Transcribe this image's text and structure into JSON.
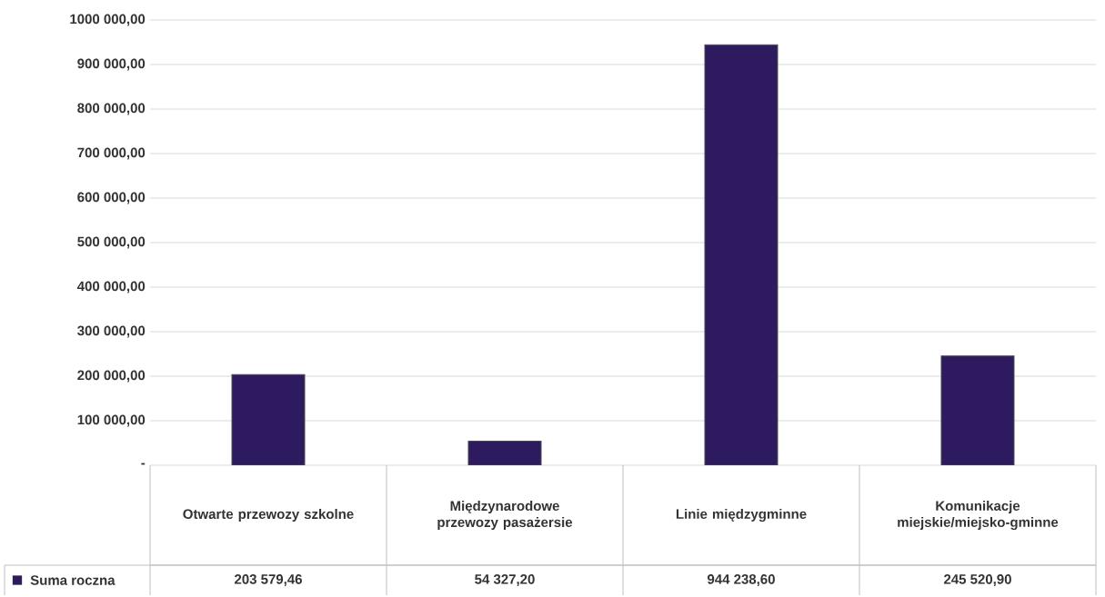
{
  "chart_data": {
    "type": "bar",
    "categories": [
      "Otwarte przewozy szkolne",
      "Międzynarodowe przewozy pasażersie",
      "Linie międzygminne",
      "Komunikacje miejskie/miejsko-gminne"
    ],
    "series": [
      {
        "name": "Suma roczna",
        "color": "#2e1a5e",
        "values": [
          203579.46,
          54327.2,
          944238.6,
          245520.9
        ],
        "value_labels": [
          "203 579,46",
          "54 327,20",
          "944 238,60",
          "245 520,90"
        ]
      }
    ],
    "ylim": [
      0,
      1000000
    ],
    "yticks": [
      {
        "value": 0,
        "label": "-"
      },
      {
        "value": 100000,
        "label": "100 000,00"
      },
      {
        "value": 200000,
        "label": "200 000,00"
      },
      {
        "value": 300000,
        "label": "300 000,00"
      },
      {
        "value": 400000,
        "label": "400 000,00"
      },
      {
        "value": 500000,
        "label": "500 000,00"
      },
      {
        "value": 600000,
        "label": "600 000,00"
      },
      {
        "value": 700000,
        "label": "700 000,00"
      },
      {
        "value": 800000,
        "label": "800 000,00"
      },
      {
        "value": 900000,
        "label": "900 000,00"
      },
      {
        "value": 1000000,
        "label": "1000 000,00"
      }
    ],
    "grid": "y",
    "legend": "bottom left"
  }
}
